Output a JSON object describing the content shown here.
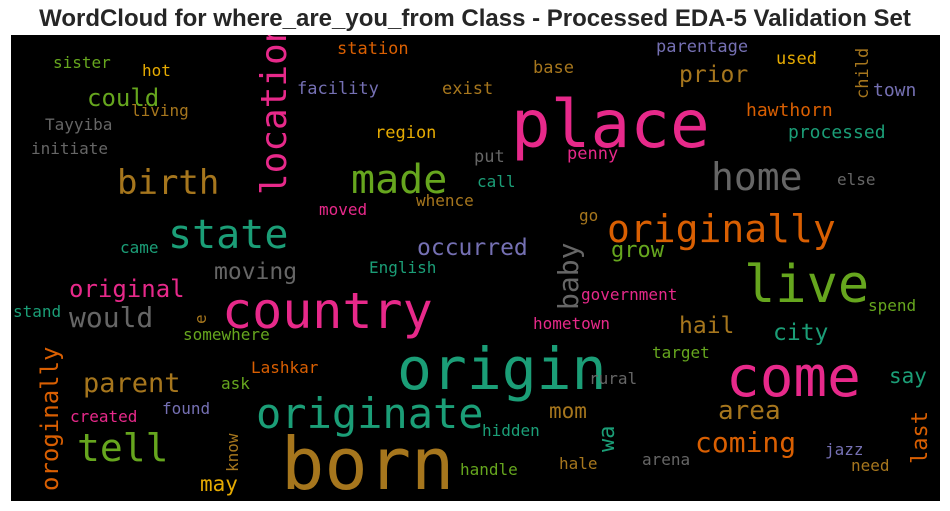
{
  "title": "WordCloud for where_are_you_from Class - Processed EDA-5 Validation Set",
  "chart_data": {
    "type": "wordcloud",
    "background": "#000000",
    "palette": [
      "#1b9e77",
      "#d95f02",
      "#7570b3",
      "#e7298a",
      "#66a61e",
      "#e6ab02",
      "#a6761d",
      "#666666"
    ],
    "words": [
      {
        "text": "place",
        "color": "#e7298a"
      },
      {
        "text": "born",
        "color": "#a6761d"
      },
      {
        "text": "origin",
        "color": "#1b9e77"
      },
      {
        "text": "come",
        "color": "#e7298a"
      },
      {
        "text": "country",
        "color": "#e7298a"
      },
      {
        "text": "live",
        "color": "#66a61e"
      },
      {
        "text": "originate",
        "color": "#1b9e77"
      },
      {
        "text": "location",
        "color": "#e7298a"
      },
      {
        "text": "originally",
        "color": "#d95f02"
      },
      {
        "text": "home",
        "color": "#666666"
      },
      {
        "text": "state",
        "color": "#1b9e77"
      },
      {
        "text": "made",
        "color": "#66a61e"
      },
      {
        "text": "tell",
        "color": "#66a61e"
      },
      {
        "text": "birth",
        "color": "#a6761d"
      },
      {
        "text": "baby",
        "color": "#666666"
      },
      {
        "text": "coming",
        "color": "#d95f02"
      },
      {
        "text": "would",
        "color": "#666666"
      },
      {
        "text": "parent",
        "color": "#a6761d"
      },
      {
        "text": "area",
        "color": "#a6761d"
      },
      {
        "text": "original",
        "color": "#e7298a"
      },
      {
        "text": "occurred",
        "color": "#7570b3"
      },
      {
        "text": "moving",
        "color": "#666666"
      },
      {
        "text": "oroginally",
        "color": "#d95f02"
      },
      {
        "text": "could",
        "color": "#66a61e"
      },
      {
        "text": "prior",
        "color": "#a6761d"
      },
      {
        "text": "city",
        "color": "#1b9e77"
      },
      {
        "text": "last",
        "color": "#d95f02"
      },
      {
        "text": "hail",
        "color": "#a6761d"
      },
      {
        "text": "wa",
        "color": "#1b9e77"
      },
      {
        "text": "mom",
        "color": "#a6761d"
      },
      {
        "text": "grow",
        "color": "#66a61e"
      },
      {
        "text": "may",
        "color": "#e6ab02"
      },
      {
        "text": "say",
        "color": "#1b9e77"
      },
      {
        "text": "town",
        "color": "#7570b3"
      },
      {
        "text": "processed",
        "color": "#1b9e77"
      },
      {
        "text": "hawthorn",
        "color": "#d95f02"
      },
      {
        "text": "used",
        "color": "#e6ab02"
      },
      {
        "text": "parentage",
        "color": "#7570b3"
      },
      {
        "text": "child",
        "color": "#a6761d"
      },
      {
        "text": "station",
        "color": "#d95f02"
      },
      {
        "text": "base",
        "color": "#a6761d"
      },
      {
        "text": "exist",
        "color": "#a6761d"
      },
      {
        "text": "facility",
        "color": "#7570b3"
      },
      {
        "text": "region",
        "color": "#e6ab02"
      },
      {
        "text": "penny",
        "color": "#e7298a"
      },
      {
        "text": "put",
        "color": "#666666"
      },
      {
        "text": "call",
        "color": "#1b9e77"
      },
      {
        "text": "whence",
        "color": "#a6761d"
      },
      {
        "text": "moved",
        "color": "#e7298a"
      },
      {
        "text": "go",
        "color": "#a6761d"
      },
      {
        "text": "else",
        "color": "#666666"
      },
      {
        "text": "sister",
        "color": "#66a61e"
      },
      {
        "text": "hot",
        "color": "#e6ab02"
      },
      {
        "text": "living",
        "color": "#a6761d"
      },
      {
        "text": "Tayyiba",
        "color": "#666666"
      },
      {
        "text": "initiate",
        "color": "#666666"
      },
      {
        "text": "came",
        "color": "#1b9e77"
      },
      {
        "text": "English",
        "color": "#1b9e77"
      },
      {
        "text": "government",
        "color": "#e7298a"
      },
      {
        "text": "spend",
        "color": "#66a61e"
      },
      {
        "text": "stand",
        "color": "#1b9e77"
      },
      {
        "text": "e",
        "color": "#a6761d"
      },
      {
        "text": "somewhere",
        "color": "#66a61e"
      },
      {
        "text": "hometown",
        "color": "#e7298a"
      },
      {
        "text": "target",
        "color": "#66a61e"
      },
      {
        "text": "Lashkar",
        "color": "#d95f02"
      },
      {
        "text": "ask",
        "color": "#66a61e"
      },
      {
        "text": "rural",
        "color": "#666666"
      },
      {
        "text": "created",
        "color": "#e7298a"
      },
      {
        "text": "found",
        "color": "#7570b3"
      },
      {
        "text": "know",
        "color": "#a6761d"
      },
      {
        "text": "hidden",
        "color": "#1b9e77"
      },
      {
        "text": "handle",
        "color": "#66a61e"
      },
      {
        "text": "hale",
        "color": "#a6761d"
      },
      {
        "text": "arena",
        "color": "#666666"
      },
      {
        "text": "jazz",
        "color": "#7570b3"
      },
      {
        "text": "need",
        "color": "#a6761d"
      }
    ]
  }
}
